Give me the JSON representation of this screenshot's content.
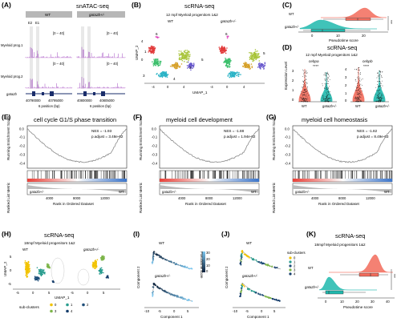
{
  "panels": {
    "A": {
      "letter": "(A)",
      "title": "snATAC-seq",
      "conditions": [
        "WT",
        "gata2b+/-"
      ],
      "markers": [
        "E2",
        "E1"
      ],
      "rows": [
        "Myeloid prog.1",
        "Myeloid prog.2"
      ],
      "range_label": "[0 – 40]",
      "gene_label": "gata2b",
      "xticks": [
        "4079",
        "40790000",
        "40795000",
        "40800000",
        "40805000"
      ],
      "xlabel": "6 position (bp)"
    },
    "B": {
      "letter": "(B)",
      "title": "scRNA-seq",
      "subtitle": "12 mpf Myeloid progenitors 1&2",
      "conditions": [
        "WT",
        "gata2b+/-"
      ],
      "cluster_labels": [
        "1",
        "2",
        "3",
        "4",
        "5",
        "6"
      ],
      "xlabel": "UMAP_1",
      "ylabel": "UMAP_2",
      "xticks": [
        "-4",
        "0",
        "4",
        "-4",
        "0",
        "4"
      ],
      "yticks": [
        "4",
        "0"
      ]
    },
    "C": {
      "letter": "(C)",
      "groups": [
        "WT",
        "gata2b+/-"
      ],
      "xlabel": "Pseudotime score",
      "xticks": [
        "0",
        "10",
        "20"
      ],
      "significance": "***"
    },
    "D": {
      "letter": "(D)",
      "title": "scRNA-seq",
      "subtitle": "12 mpf Myeloid progenitors 1&2",
      "genes": [
        "cebpa",
        "cebpb"
      ],
      "significance": [
        "****",
        "****"
      ],
      "ylabel": "Expression Level",
      "yticks_left": [
        "3",
        "2",
        "1",
        "0"
      ],
      "yticks_right": [
        "4",
        "3",
        "2",
        "1",
        "0"
      ],
      "groups": [
        "WT",
        "gata2b+/-"
      ]
    },
    "E": {
      "letter": "(E)",
      "title": "cell cycle G1/S phase transition",
      "nes": "NES = -1.93",
      "padj": "p.adjust = 3.48e-02",
      "ylabel_top": "Running Enrichment Score",
      "ylabel_bottom": "Ranked List Metric",
      "yticks": [
        "0.0",
        "-0.1",
        "-0.2",
        "-0.3",
        "-0.4"
      ],
      "xticks": [
        "4000",
        "8000",
        "12000"
      ],
      "xlabel": "Rank in Ordered Dataset",
      "left_label": "gata2b+/-",
      "right_label": "WT"
    },
    "F": {
      "letter": "(F)",
      "title": "myeloid cell development",
      "nes": "NES = -1.88",
      "padj": "p.adjust = 1.94e-02",
      "ylabel_top": "Running Enrichment Score",
      "ylabel_bottom": "Ranked List Metric",
      "yticks": [
        "0.0",
        "-0.1",
        "-0.2",
        "-0.3",
        "-0.4"
      ],
      "xticks": [
        "4000",
        "8000",
        "12000"
      ],
      "xlabel": "Rank in Ordered Dataset",
      "left_label": "gata2b+/-",
      "right_label": "WT"
    },
    "G": {
      "letter": "(G)",
      "title": "myeloid cell homeostasis",
      "nes": "NES = -1.82",
      "padj": "p.adjust = 8.49e-03",
      "ylabel_top": "Running Enrichment Score",
      "ylabel_bottom": "Ranked List Metric",
      "yticks": [
        "0.0",
        "-0.1",
        "-0.2",
        "-0.3",
        "-0.4"
      ],
      "xticks": [
        "4000",
        "8000",
        "12000"
      ],
      "xlabel": "Rank in Ordered Dataset",
      "left_label": "gata2b+/-",
      "right_label": "WT"
    },
    "H": {
      "letter": "(H)",
      "title": "scRNA-seq",
      "subtitle": "18mpf Myeloid progenitors 1&2",
      "conditions": [
        "WT",
        "gata2b+/-"
      ],
      "xlabel": "UMAP_1",
      "ylabel": "UMAP_2",
      "xticks": [
        "-5",
        "0",
        "5",
        "-5",
        "0",
        "5"
      ],
      "yticks": [
        "5",
        "0",
        "-5"
      ],
      "legend_title": "sub-clusters",
      "legend": [
        "0",
        "1",
        "2",
        "3",
        "4"
      ]
    },
    "I": {
      "letter": "(I)",
      "conditions": [
        "WT",
        "gata2b+/-"
      ],
      "xlabel": "Component 1",
      "ylabel": "Component 2",
      "xticks": [
        "-10",
        "-5",
        "0",
        "5"
      ],
      "legend_title": "Pseudotime score",
      "legend_ticks": [
        "30",
        "20",
        "10",
        "0"
      ]
    },
    "J": {
      "letter": "(J)",
      "conditions": [
        "WT",
        "gata2b+/-"
      ],
      "xlabel": "Component 1",
      "ylabel": "Component 2",
      "xticks": [
        "-10",
        "-5",
        "0",
        "5"
      ],
      "legend_title": "sub-clusters",
      "legend": [
        "0",
        "1",
        "2",
        "3",
        "4"
      ]
    },
    "K": {
      "letter": "(K)",
      "title": "scRNA-seq",
      "subtitle": "18mpf Myeloid progenitors 1&2",
      "groups": [
        "WT",
        "gata2b+/-"
      ],
      "xlabel": "Pseudotime score",
      "xticks": [
        "0",
        "10",
        "20",
        "30",
        "40"
      ],
      "significance": "***"
    }
  },
  "colors": {
    "wt": "#f26b5b",
    "mut": "#1fb8ad",
    "gsea_curve": "#8a8a8a",
    "rank_red": "#e8423a",
    "rank_blue": "#3b74c9",
    "c0": "#f2c300",
    "c1": "#2a9d8f",
    "c2": "#1f4e79",
    "c3": "#7db54a",
    "c4": "#153d6b",
    "b_c1": "#e23b3b",
    "b_c2": "#a8c43a",
    "b_c3": "#3bbf6b",
    "b_c4": "#2ab3c6",
    "b_c5": "#6a5acd",
    "b_c6": "#e04cc0"
  }
}
